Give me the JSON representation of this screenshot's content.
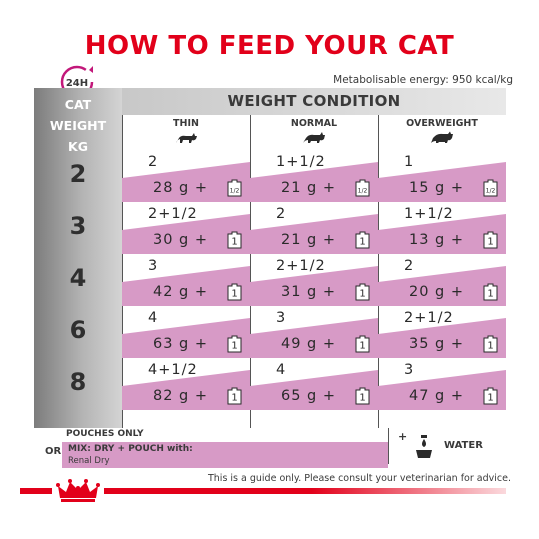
{
  "title": "HOW TO FEED YOUR CAT",
  "clock_label": "24H",
  "energy": "Metabolisable energy: 950 kcal/kg",
  "header": {
    "cat_weight": [
      "CAT",
      "WEIGHT",
      "KG"
    ],
    "weight_condition": "WEIGHT CONDITION",
    "columns": [
      "THIN",
      "NORMAL",
      "OVERWEIGHT"
    ]
  },
  "rows": [
    {
      "weight": "2",
      "cells": [
        {
          "pouches": "2",
          "grams": "28 g  +",
          "pouch_icon": "1/2"
        },
        {
          "pouches": "1+1/2",
          "grams": "21 g  +",
          "pouch_icon": "1/2"
        },
        {
          "pouches": "1",
          "grams": "15 g  +",
          "pouch_icon": "1/2"
        }
      ]
    },
    {
      "weight": "3",
      "cells": [
        {
          "pouches": "2+1/2",
          "grams": "30 g  +",
          "pouch_icon": "1"
        },
        {
          "pouches": "2",
          "grams": "21 g  +",
          "pouch_icon": "1"
        },
        {
          "pouches": "1+1/2",
          "grams": "13 g  +",
          "pouch_icon": "1"
        }
      ]
    },
    {
      "weight": "4",
      "cells": [
        {
          "pouches": "3",
          "grams": "42 g  +",
          "pouch_icon": "1"
        },
        {
          "pouches": "2+1/2",
          "grams": "31 g  +",
          "pouch_icon": "1"
        },
        {
          "pouches": "2",
          "grams": "20 g  +",
          "pouch_icon": "1"
        }
      ]
    },
    {
      "weight": "6",
      "cells": [
        {
          "pouches": "4",
          "grams": "63 g  +",
          "pouch_icon": "1"
        },
        {
          "pouches": "3",
          "grams": "49 g  +",
          "pouch_icon": "1"
        },
        {
          "pouches": "2+1/2",
          "grams": "35 g  +",
          "pouch_icon": "1"
        }
      ]
    },
    {
      "weight": "8",
      "cells": [
        {
          "pouches": "4+1/2",
          "grams": "82 g  +",
          "pouch_icon": "1"
        },
        {
          "pouches": "4",
          "grams": "65 g  +",
          "pouch_icon": "1"
        },
        {
          "pouches": "3",
          "grams": "47 g  +",
          "pouch_icon": "1"
        }
      ]
    }
  ],
  "legend": {
    "pouches_only": "POUCHES ONLY",
    "or": "OR",
    "mix": "MIX: DRY + POUCH with:",
    "renal": "Renal Dry",
    "plus": "+",
    "water": "WATER"
  },
  "footer": "This is a guide only. Please consult your veterinarian for advice.",
  "colors": {
    "brand_red": "#e2001a",
    "pink": "#d79ac6",
    "grey_dark": "#7c7c7c"
  },
  "icons": [
    "clock-24h-icon",
    "cat-thin-icon",
    "cat-normal-icon",
    "cat-overweight-icon",
    "pouch-icon",
    "water-bowl-icon",
    "royal-canin-crown-logo"
  ]
}
